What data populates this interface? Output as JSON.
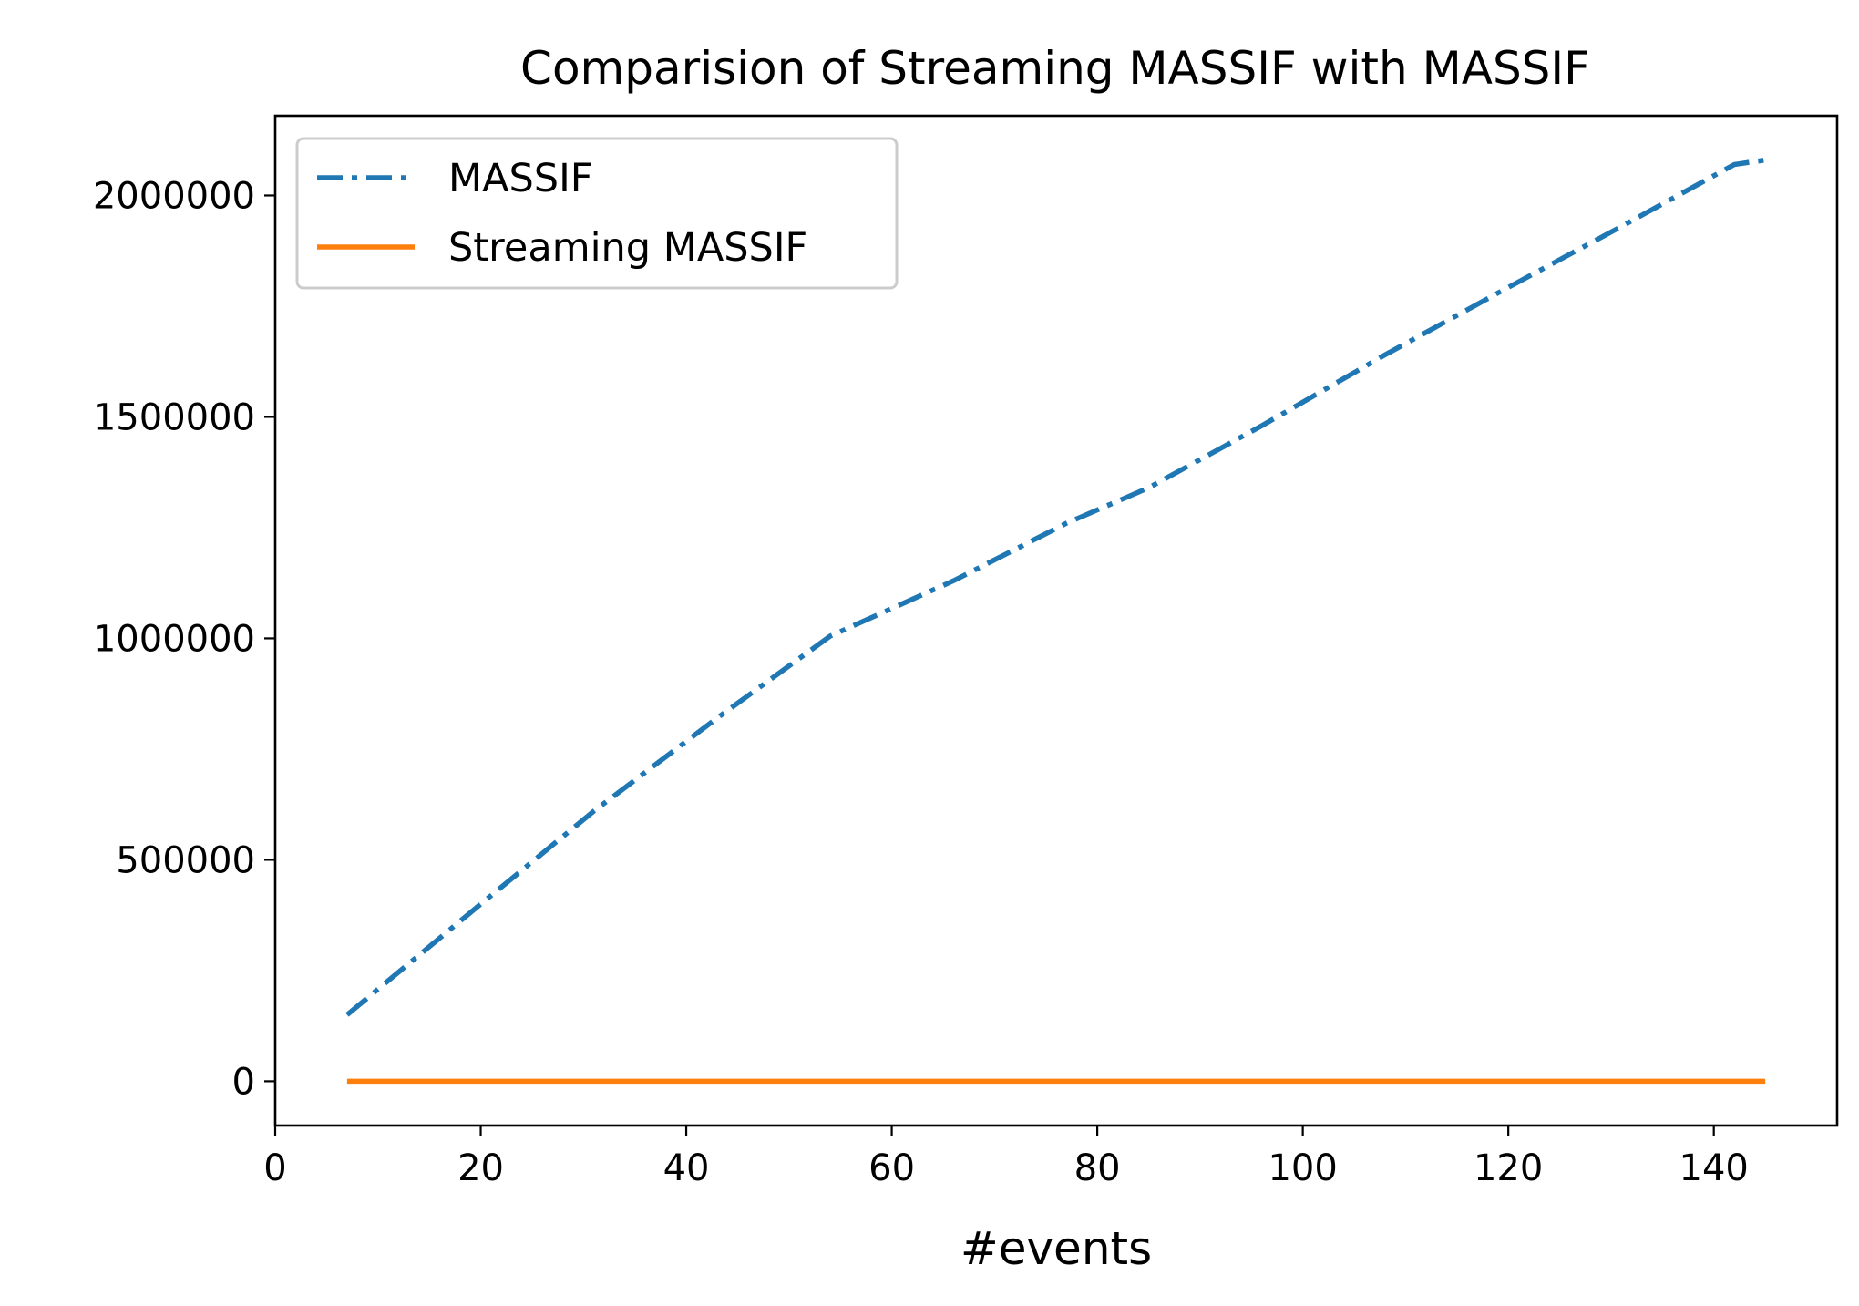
{
  "chart_data": {
    "type": "line",
    "title": "Comparision of Streaming MASSIF with MASSIF",
    "xlabel": "#events",
    "ylabel": "",
    "xlim": [
      0,
      152
    ],
    "ylim": [
      -100000,
      2180000
    ],
    "xticks": [
      0,
      20,
      40,
      60,
      80,
      100,
      120,
      140
    ],
    "yticks": [
      0,
      500000,
      1000000,
      1500000,
      2000000
    ],
    "legend_position": "upper-left",
    "grid": false,
    "series": [
      {
        "name": "MASSIF",
        "color": "#1f77b4",
        "style": "dashdot",
        "x": [
          7,
          20,
          31,
          43,
          54,
          66,
          77,
          85,
          96,
          108,
          119,
          131,
          142,
          145
        ],
        "y": [
          150000,
          400000,
          610000,
          820000,
          1005000,
          1130000,
          1260000,
          1340000,
          1480000,
          1640000,
          1780000,
          1930000,
          2070000,
          2080000
        ]
      },
      {
        "name": "Streaming MASSIF",
        "color": "#ff7f0e",
        "style": "solid",
        "x": [
          7,
          145
        ],
        "y": [
          0,
          0
        ]
      }
    ]
  }
}
